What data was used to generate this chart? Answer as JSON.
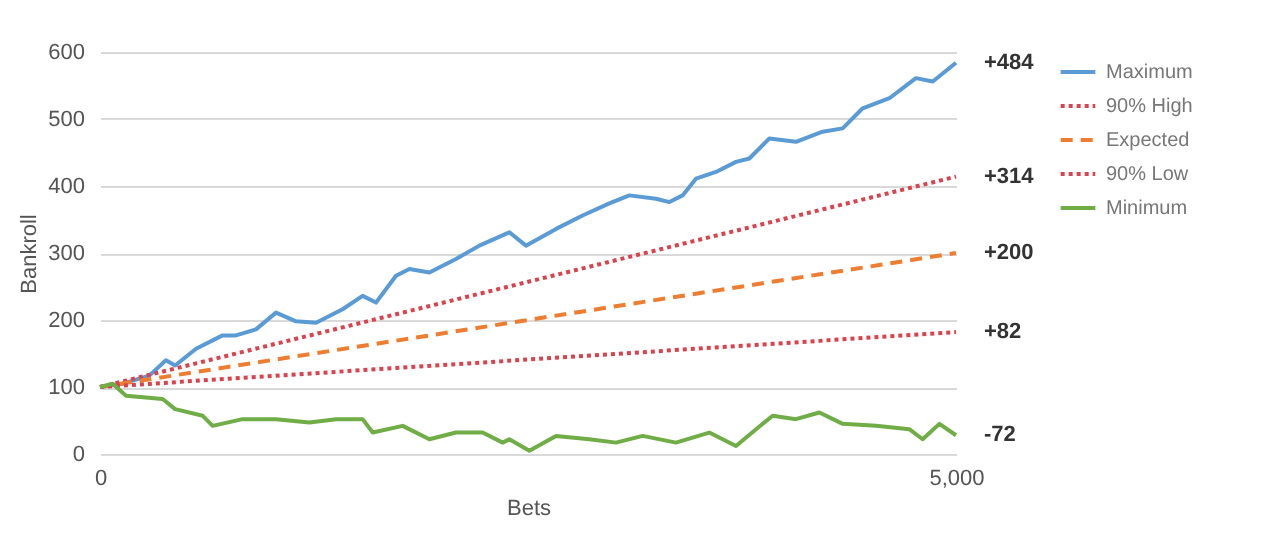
{
  "chart_data": {
    "type": "line",
    "xlabel": "Bets",
    "ylabel": "Bankroll",
    "xlim": [
      0,
      5000
    ],
    "xticks": [
      0,
      {
        "value": 5000,
        "label": "5,000"
      }
    ],
    "ylim": [
      0,
      600
    ],
    "yticks": [
      0,
      100,
      200,
      300,
      400,
      500,
      600
    ],
    "grid": "y",
    "legend": "right",
    "marker": "none",
    "series": [
      {
        "name": "Maximum",
        "color": "#5b9bd5",
        "line_style": "solid",
        "x": [
          0,
          132,
          288,
          385,
          439,
          561,
          716,
          794,
          911,
          1028,
          1145,
          1262,
          1417,
          1534,
          1612,
          1729,
          1807,
          1924,
          2079,
          2216,
          2391,
          2488,
          2664,
          2819,
          2975,
          3092,
          3248,
          3326,
          3403,
          3481,
          3598,
          3715,
          3793,
          3910,
          4065,
          4221,
          4338,
          4455,
          4611,
          4766,
          4864,
          5000
        ],
        "values": [
          100,
          105,
          117,
          140,
          132,
          157,
          177,
          177,
          186,
          211,
          198,
          196,
          216,
          236,
          226,
          266,
          276,
          271,
          291,
          311,
          331,
          311,
          336,
          356,
          374,
          386,
          381,
          376,
          386,
          411,
          421,
          436,
          441,
          471,
          466,
          481,
          486,
          516,
          531,
          561,
          556,
          584
        ]
      },
      {
        "name": "90% High",
        "color": "#d9434d",
        "line_style": "dotted",
        "x": [
          0,
          5000
        ],
        "values": [
          100,
          414
        ]
      },
      {
        "name": "Expected",
        "color": "#ed7d31",
        "line_style": "dashed",
        "x": [
          0,
          5000
        ],
        "values": [
          100,
          300
        ]
      },
      {
        "name": "90% Low",
        "color": "#d9434d",
        "line_style": "dotted",
        "x": [
          0,
          5000
        ],
        "values": [
          100,
          182
        ]
      },
      {
        "name": "Minimum",
        "color": "#70ad47",
        "line_style": "solid",
        "x": [
          0,
          74,
          152,
          366,
          439,
          600,
          658,
          833,
          1028,
          1223,
          1379,
          1534,
          1593,
          1768,
          1924,
          2079,
          2235,
          2352,
          2391,
          2508,
          2664,
          2858,
          3014,
          3170,
          3364,
          3559,
          3715,
          3832,
          3929,
          4065,
          4202,
          4338,
          4533,
          4727,
          4805,
          4903,
          5000
        ],
        "values": [
          100,
          105,
          87,
          82,
          67,
          57,
          42,
          52,
          52,
          47,
          52,
          52,
          32,
          42,
          22,
          32,
          32,
          17,
          22,
          5,
          27,
          22,
          17,
          27,
          17,
          32,
          12,
          37,
          57,
          52,
          62,
          45,
          42,
          37,
          22,
          45,
          28
        ]
      }
    ],
    "annotations": [
      "+484",
      "+314",
      "+200",
      "+82",
      "-72"
    ]
  }
}
